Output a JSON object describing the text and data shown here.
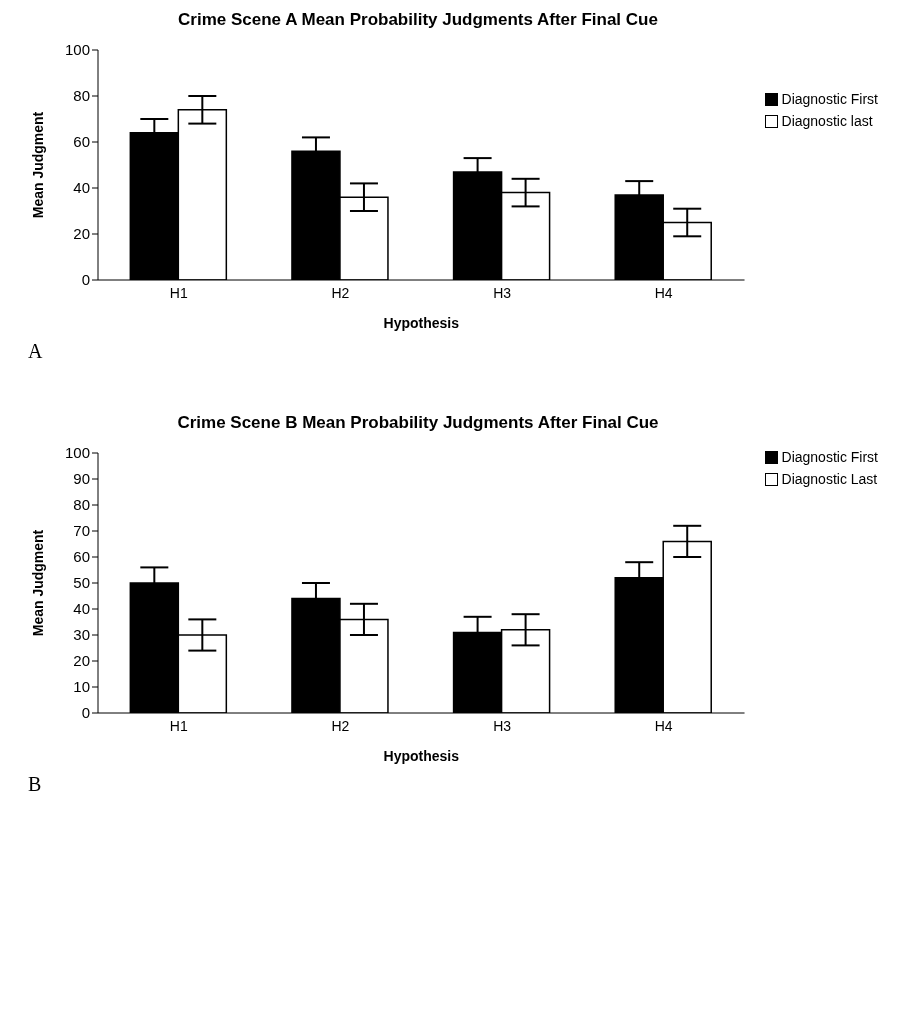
{
  "chart_data": [
    {
      "type": "bar",
      "title": "Crime Scene A Mean Probability Judgments After Final Cue",
      "xlabel": "Hypothesis",
      "ylabel": "Mean Judgment",
      "categories": [
        "H1",
        "H2",
        "H3",
        "H4"
      ],
      "series": [
        {
          "name": "Diagnostic First",
          "color": "#000000",
          "values": [
            64,
            56,
            47,
            37
          ],
          "errors": [
            6,
            6,
            6,
            6
          ]
        },
        {
          "name": "Diagnostic last",
          "color": "#ffffff",
          "values": [
            74,
            36,
            38,
            25
          ],
          "errors": [
            6,
            6,
            6,
            6
          ]
        }
      ],
      "ylim": [
        0,
        100
      ],
      "yticks": [
        0,
        20,
        40,
        60,
        80,
        100
      ],
      "grid": false,
      "legend": "top right",
      "annotations": [
        "A"
      ]
    },
    {
      "type": "bar",
      "title": "Crime Scene B Mean Probability Judgments After Final Cue",
      "xlabel": "Hypothesis",
      "ylabel": "Mean Judgment",
      "categories": [
        "H1",
        "H2",
        "H3",
        "H4"
      ],
      "series": [
        {
          "name": "Diagnostic First",
          "color": "#000000",
          "values": [
            50,
            44,
            31,
            52
          ],
          "errors": [
            6,
            6,
            6,
            6
          ]
        },
        {
          "name": "Diagnostic Last",
          "color": "#ffffff",
          "values": [
            30,
            36,
            32,
            66
          ],
          "errors": [
            6,
            6,
            6,
            6
          ]
        }
      ],
      "ylim": [
        0,
        100
      ],
      "yticks": [
        0,
        10,
        20,
        30,
        40,
        50,
        60,
        70,
        80,
        90,
        100
      ],
      "grid": false,
      "legend": "right",
      "annotations": [
        "B"
      ]
    }
  ]
}
